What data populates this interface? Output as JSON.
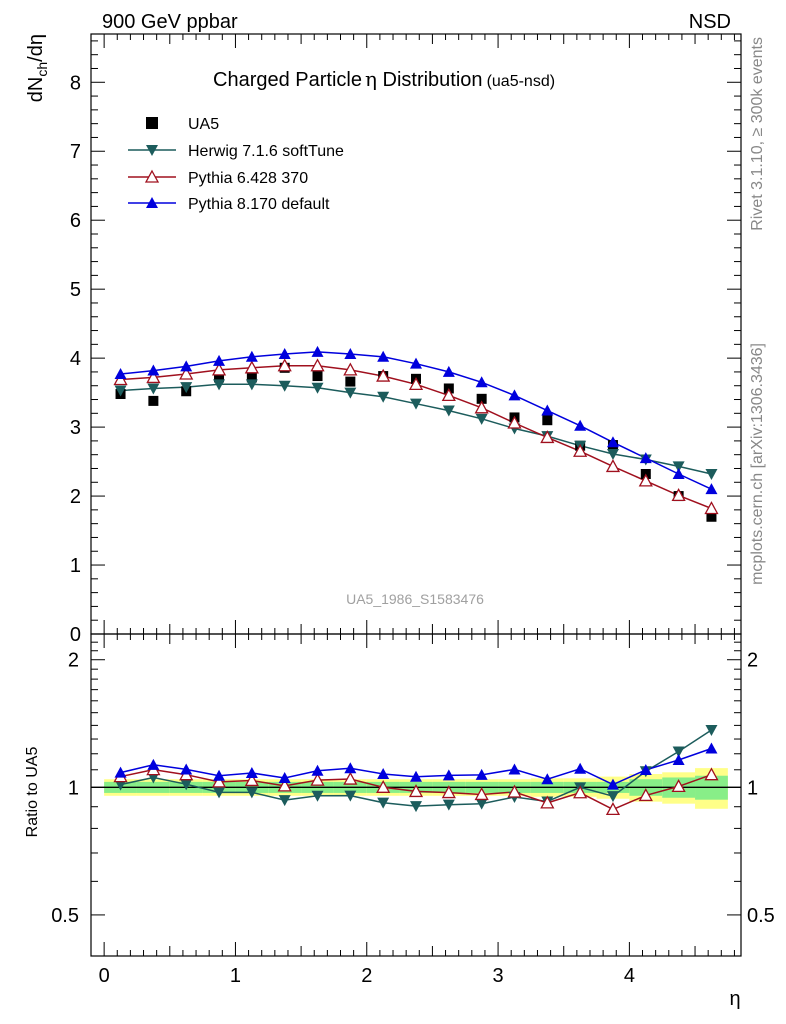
{
  "header": {
    "left": "900 GeV ppbar",
    "right": "NSD"
  },
  "side_labels": {
    "rivet": "Rivet 3.1.10, ≥ 300k events",
    "mcplots": "mcplots.cern.ch [arXiv:1306.3436]"
  },
  "chart_data": [
    {
      "type": "scatter",
      "title": "Charged Particle",
      "title_symbol": "η",
      "title_rest": " Distribution",
      "title_tag": "(ua5-nsd)",
      "ylabel": {
        "base": "dN",
        "sub": "ch",
        "rest": "/dη"
      },
      "xlim": [
        -0.1,
        4.85
      ],
      "ylim": [
        0,
        8.7
      ],
      "yticks": [
        0,
        1,
        2,
        3,
        4,
        5,
        6,
        7,
        8
      ],
      "watermark": "UA5_1986_S1583476",
      "x": [
        0.125,
        0.375,
        0.625,
        0.875,
        1.125,
        1.375,
        1.625,
        1.875,
        2.125,
        2.375,
        2.625,
        2.875,
        3.125,
        3.375,
        3.625,
        3.875,
        4.125,
        4.375,
        4.625
      ],
      "series": [
        {
          "name": "UA5",
          "marker": "square",
          "color": "#000000",
          "values": [
            3.48,
            3.38,
            3.52,
            3.72,
            3.72,
            3.86,
            3.74,
            3.66,
            3.74,
            3.7,
            3.56,
            3.41,
            3.14,
            3.1,
            2.73,
            2.74,
            2.32,
            2.0,
            1.7
          ]
        },
        {
          "name": "Herwig 7.1.6 softTune",
          "marker": "triangle-down",
          "color": "#1c5c5c",
          "values": [
            3.53,
            3.56,
            3.58,
            3.62,
            3.62,
            3.6,
            3.57,
            3.5,
            3.44,
            3.34,
            3.24,
            3.12,
            2.98,
            2.87,
            2.73,
            2.61,
            2.53,
            2.43,
            2.32
          ]
        },
        {
          "name": "Pythia 6.428 370",
          "marker": "triangle-up-open",
          "color": "#a0101e",
          "values": [
            3.69,
            3.72,
            3.77,
            3.83,
            3.86,
            3.89,
            3.89,
            3.83,
            3.74,
            3.62,
            3.46,
            3.28,
            3.06,
            2.85,
            2.65,
            2.43,
            2.22,
            2.01,
            1.82
          ]
        },
        {
          "name": "Pythia 8.170 default",
          "marker": "triangle-up",
          "color": "#0000dd",
          "values": [
            3.77,
            3.82,
            3.88,
            3.96,
            4.02,
            4.06,
            4.09,
            4.06,
            4.02,
            3.92,
            3.8,
            3.65,
            3.46,
            3.24,
            3.02,
            2.78,
            2.55,
            2.32,
            2.1
          ]
        }
      ]
    },
    {
      "type": "line",
      "ylabel": "Ratio to UA5",
      "xlabel": "η",
      "xlim": [
        -0.1,
        4.85
      ],
      "ylim": [
        0.4,
        2.3
      ],
      "ytick_values": [
        0.5,
        1,
        2
      ],
      "ytick_labels": [
        "0.5",
        "1",
        "2"
      ],
      "xticks": [
        0,
        1,
        2,
        3,
        4
      ],
      "band_inner": [
        0.03,
        0.03,
        0.03,
        0.03,
        0.03,
        0.03,
        0.03,
        0.03,
        0.03,
        0.03,
        0.03,
        0.03,
        0.03,
        0.03,
        0.03,
        0.03,
        0.045,
        0.055,
        0.065
      ],
      "band_outer": [
        0.045,
        0.045,
        0.045,
        0.045,
        0.045,
        0.045,
        0.045,
        0.045,
        0.045,
        0.045,
        0.045,
        0.045,
        0.045,
        0.05,
        0.05,
        0.06,
        0.075,
        0.085,
        0.11
      ],
      "series": [
        {
          "name": "Herwig 7.1.6 softTune",
          "marker": "triangle-down",
          "color": "#1c5c5c",
          "values": [
            1.015,
            1.055,
            1.017,
            0.973,
            0.973,
            0.933,
            0.955,
            0.956,
            0.92,
            0.903,
            0.91,
            0.915,
            0.949,
            0.926,
            1.0,
            0.953,
            1.091,
            1.215,
            1.365
          ]
        },
        {
          "name": "Pythia 6.428 370",
          "marker": "triangle-up-open",
          "color": "#a0101e",
          "values": [
            1.06,
            1.101,
            1.071,
            1.03,
            1.038,
            1.008,
            1.04,
            1.046,
            1.0,
            0.978,
            0.972,
            0.962,
            0.975,
            0.919,
            0.971,
            0.887,
            0.957,
            1.005,
            1.071
          ]
        },
        {
          "name": "Pythia 8.170 default",
          "marker": "triangle-up",
          "color": "#0000dd",
          "values": [
            1.083,
            1.13,
            1.102,
            1.065,
            1.081,
            1.052,
            1.094,
            1.109,
            1.075,
            1.059,
            1.067,
            1.07,
            1.102,
            1.045,
            1.106,
            1.015,
            1.099,
            1.16,
            1.235
          ]
        }
      ]
    }
  ]
}
